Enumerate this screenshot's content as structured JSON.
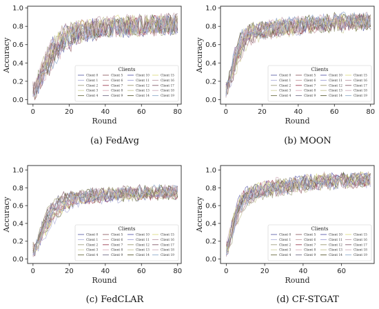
{
  "chart_data": [
    {
      "type": "line",
      "caption": "(a) FedAvg",
      "xlabel": "Round",
      "ylabel": "Accuracy",
      "xlim": [
        -3,
        82
      ],
      "ylim": [
        -0.05,
        1.02
      ],
      "xticks": [
        "0",
        "20",
        "40",
        "60",
        "80"
      ],
      "yticks": [
        "0.0",
        "0.2",
        "0.4",
        "0.6",
        "0.8",
        "1.0"
      ],
      "grid": false,
      "legend": {
        "title": "Clients",
        "placement": "lower-right",
        "columns": 4
      },
      "series_count": 20,
      "rounds": 80,
      "envelope": [
        [
          0,
          0.06
        ],
        [
          4,
          0.25
        ],
        [
          8,
          0.42
        ],
        [
          12,
          0.55
        ],
        [
          16,
          0.65
        ],
        [
          20,
          0.72
        ],
        [
          25,
          0.75
        ],
        [
          30,
          0.78
        ],
        [
          40,
          0.8
        ],
        [
          50,
          0.82
        ],
        [
          60,
          0.83
        ],
        [
          70,
          0.84
        ],
        [
          80,
          0.84
        ]
      ],
      "noise": 0.11,
      "series": [
        {
          "name": "Client 0"
        },
        {
          "name": "Client 1"
        },
        {
          "name": "Client 2"
        },
        {
          "name": "Client 3"
        },
        {
          "name": "Client 4"
        },
        {
          "name": "Client 5"
        },
        {
          "name": "Client 6"
        },
        {
          "name": "Client 7"
        },
        {
          "name": "Client 8"
        },
        {
          "name": "Client 9"
        },
        {
          "name": "Client 10"
        },
        {
          "name": "Client 11"
        },
        {
          "name": "Client 12"
        },
        {
          "name": "Client 13"
        },
        {
          "name": "Client 14"
        },
        {
          "name": "Client 15"
        },
        {
          "name": "Client 16"
        },
        {
          "name": "Client 17"
        },
        {
          "name": "Client 18"
        },
        {
          "name": "Client 19"
        }
      ]
    },
    {
      "type": "line",
      "caption": "(b) MOON",
      "xlabel": "Round",
      "ylabel": "Accuracy",
      "xlim": [
        -3,
        82
      ],
      "ylim": [
        -0.05,
        1.02
      ],
      "xticks": [
        "0",
        "20",
        "40",
        "60",
        "80"
      ],
      "yticks": [
        "0.0",
        "0.2",
        "0.4",
        "0.6",
        "0.8",
        "1.0"
      ],
      "grid": false,
      "legend": {
        "title": "Clients",
        "placement": "lower-right",
        "columns": 4
      },
      "series_count": 20,
      "rounds": 80,
      "envelope": [
        [
          0,
          0.05
        ],
        [
          3,
          0.22
        ],
        [
          6,
          0.45
        ],
        [
          10,
          0.62
        ],
        [
          15,
          0.7
        ],
        [
          20,
          0.72
        ],
        [
          30,
          0.75
        ],
        [
          40,
          0.77
        ],
        [
          50,
          0.78
        ],
        [
          60,
          0.8
        ],
        [
          70,
          0.81
        ],
        [
          80,
          0.82
        ]
      ],
      "noise": 0.09,
      "series": [
        {
          "name": "Client 0"
        },
        {
          "name": "Client 1"
        },
        {
          "name": "Client 2"
        },
        {
          "name": "Client 3"
        },
        {
          "name": "Client 4"
        },
        {
          "name": "Client 5"
        },
        {
          "name": "Client 6"
        },
        {
          "name": "Client 7"
        },
        {
          "name": "Client 8"
        },
        {
          "name": "Client 9"
        },
        {
          "name": "Client 10"
        },
        {
          "name": "Client 11"
        },
        {
          "name": "Client 12"
        },
        {
          "name": "Client 13"
        },
        {
          "name": "Client 14"
        },
        {
          "name": "Client 15"
        },
        {
          "name": "Client 16"
        },
        {
          "name": "Client 17"
        },
        {
          "name": "Client 18"
        },
        {
          "name": "Client 19"
        }
      ]
    },
    {
      "type": "line",
      "caption": "(c) FedCLAR",
      "xlabel": "Round",
      "ylabel": "Accuracy",
      "xlim": [
        -3,
        82
      ],
      "ylim": [
        -0.05,
        1.05
      ],
      "xticks": [
        "0",
        "20",
        "40",
        "60",
        "80"
      ],
      "yticks": [
        "0.0",
        "0.2",
        "0.4",
        "0.6",
        "0.8",
        "1.0"
      ],
      "grid": false,
      "legend": {
        "title": "Clients",
        "placement": "lower-right",
        "columns": 4
      },
      "series_count": 20,
      "rounds": 80,
      "envelope": [
        [
          0,
          0.08
        ],
        [
          4,
          0.3
        ],
        [
          8,
          0.48
        ],
        [
          12,
          0.6
        ],
        [
          16,
          0.68
        ],
        [
          20,
          0.72
        ],
        [
          30,
          0.75
        ],
        [
          40,
          0.77
        ],
        [
          50,
          0.78
        ],
        [
          60,
          0.79
        ],
        [
          70,
          0.8
        ],
        [
          80,
          0.8
        ]
      ],
      "noise": 0.07,
      "series": [
        {
          "name": "Client 0"
        },
        {
          "name": "Client 1"
        },
        {
          "name": "Client 2"
        },
        {
          "name": "Client 3"
        },
        {
          "name": "Client 4"
        },
        {
          "name": "Client 5"
        },
        {
          "name": "Client 6"
        },
        {
          "name": "Client 7"
        },
        {
          "name": "Client 8"
        },
        {
          "name": "Client 9"
        },
        {
          "name": "Client 10"
        },
        {
          "name": "Client 11"
        },
        {
          "name": "Client 12"
        },
        {
          "name": "Client 13"
        },
        {
          "name": "Client 14"
        },
        {
          "name": "Client 15"
        },
        {
          "name": "Client 16"
        },
        {
          "name": "Client 17"
        },
        {
          "name": "Client 18"
        },
        {
          "name": "Client 19"
        }
      ]
    },
    {
      "type": "line",
      "caption": "(d) CF-STGAT",
      "xlabel": "Round",
      "ylabel": "Accuracy",
      "xlim": [
        -3,
        77
      ],
      "ylim": [
        -0.05,
        1.05
      ],
      "xticks": [
        "0",
        "20",
        "40",
        "60"
      ],
      "yticks": [
        "0.0",
        "0.2",
        "0.4",
        "0.6",
        "0.8",
        "1.0"
      ],
      "grid": false,
      "legend": {
        "title": "Clients",
        "placement": "lower-right",
        "columns": 4
      },
      "series_count": 20,
      "rounds": 75,
      "envelope": [
        [
          0,
          0.06
        ],
        [
          3,
          0.3
        ],
        [
          6,
          0.55
        ],
        [
          10,
          0.68
        ],
        [
          15,
          0.74
        ],
        [
          20,
          0.77
        ],
        [
          30,
          0.81
        ],
        [
          40,
          0.84
        ],
        [
          50,
          0.86
        ],
        [
          60,
          0.88
        ],
        [
          75,
          0.89
        ]
      ],
      "noise": 0.08,
      "series": [
        {
          "name": "Client 0"
        },
        {
          "name": "Client 1"
        },
        {
          "name": "Client 2"
        },
        {
          "name": "Client 3"
        },
        {
          "name": "Client 4"
        },
        {
          "name": "Client 5"
        },
        {
          "name": "Client 6"
        },
        {
          "name": "Client 7"
        },
        {
          "name": "Client 8"
        },
        {
          "name": "Client 9"
        },
        {
          "name": "Client 10"
        },
        {
          "name": "Client 11"
        },
        {
          "name": "Client 12"
        },
        {
          "name": "Client 13"
        },
        {
          "name": "Client 14"
        },
        {
          "name": "Client 15"
        },
        {
          "name": "Client 16"
        },
        {
          "name": "Client 17"
        },
        {
          "name": "Client 18"
        },
        {
          "name": "Client 19"
        }
      ]
    }
  ],
  "colors": {
    "series": [
      "#6f73b0",
      "#b5b6dc",
      "#a9a88c",
      "#d5d5a8",
      "#797a52",
      "#9e6f76",
      "#c8a2a8",
      "#a54e62",
      "#ddb4bf",
      "#7f7a92",
      "#6b6bb3",
      "#a8a8d7",
      "#a6a27d",
      "#c9c89d",
      "#696a45",
      "#e0df8f",
      "#c3a3ae",
      "#8f6a77",
      "#d2b4c0",
      "#99b3cf"
    ],
    "axis": "#222222"
  }
}
